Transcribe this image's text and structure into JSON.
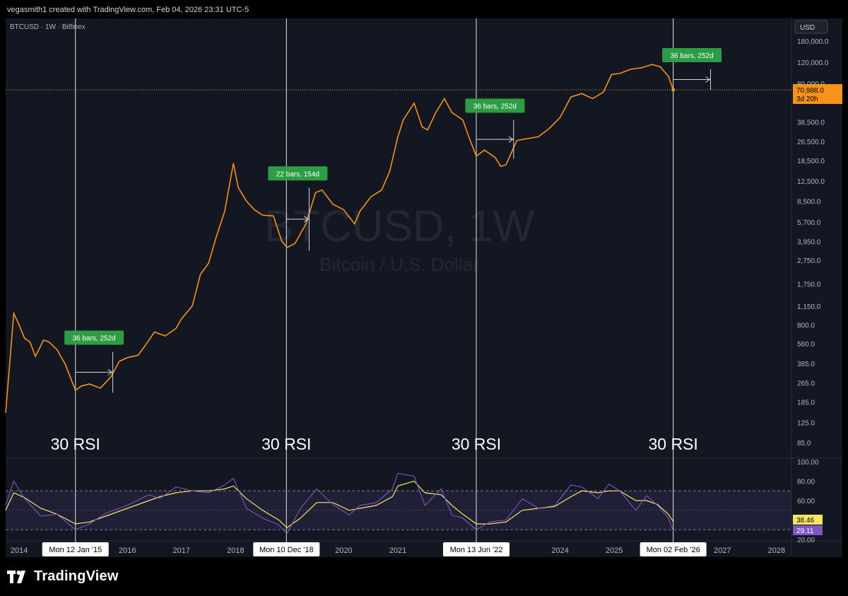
{
  "header": {
    "credit": "vegasmith1 created with TradingView.com, Feb 04, 2026 23:31 UTC-5",
    "symbol_line": "BTCUSD · 1W · Bitfinex",
    "currency": "USD"
  },
  "watermark": {
    "title": "BTCUSD, 1W",
    "subtitle": "Bitcoin / U.S. Dollar"
  },
  "price_badge": {
    "price": "70,988.0",
    "countdown": "3d 20h"
  },
  "rsi_badges": {
    "ma": "38.46",
    "rsi": "29.11"
  },
  "colors": {
    "price_line": "#f7931a",
    "rsi_line": "#7e57c2",
    "rsi_ma": "#f5e663",
    "measure_box": "#2e9c44",
    "background": "#000000"
  },
  "brand": {
    "name": "TradingView",
    "icon": "tradingview-logo-icon"
  },
  "chart_data": [
    {
      "type": "line",
      "name": "price",
      "y_scale": "log",
      "x_axis": {
        "labels": [
          "2014",
          "2016",
          "2017",
          "2018",
          "2020",
          "2021",
          "2024",
          "2025",
          "2027",
          "2028"
        ],
        "range": [
          2013.75,
          2028.25
        ]
      },
      "y_axis": {
        "ticks": [
          180000,
          120000,
          80000,
          38500,
          26500,
          18500,
          12500,
          8500,
          5700,
          3950,
          2750,
          1750,
          1150,
          800,
          560,
          385,
          265,
          185,
          125,
          85
        ],
        "labels": [
          "180,000.0",
          "120,000.0",
          "80,000.0",
          "38,500.0",
          "26,500.0",
          "18,500.0",
          "12,500.0",
          "8,500.0",
          "5,700.0",
          "3,950.0",
          "2,750.0",
          "1,750.0",
          "1,150.0",
          "800.0",
          "560.0",
          "385.0",
          "265.0",
          "185.0",
          "125.0",
          "85.0"
        ]
      },
      "last_price": 70988,
      "x": [
        2013.75,
        2013.9,
        2014.0,
        2014.1,
        2014.2,
        2014.3,
        2014.45,
        2014.55,
        2014.7,
        2014.85,
        2015.04,
        2015.15,
        2015.3,
        2015.5,
        2015.7,
        2015.85,
        2016.0,
        2016.2,
        2016.4,
        2016.5,
        2016.7,
        2016.9,
        2017.0,
        2017.2,
        2017.35,
        2017.5,
        2017.65,
        2017.8,
        2017.96,
        2018.05,
        2018.2,
        2018.35,
        2018.5,
        2018.7,
        2018.85,
        2018.95,
        2019.1,
        2019.3,
        2019.48,
        2019.6,
        2019.8,
        2020.0,
        2020.2,
        2020.3,
        2020.5,
        2020.7,
        2020.85,
        2021.0,
        2021.1,
        2021.3,
        2021.45,
        2021.55,
        2021.7,
        2021.86,
        2022.0,
        2022.2,
        2022.3,
        2022.45,
        2022.6,
        2022.8,
        2022.9,
        2023.0,
        2023.2,
        2023.4,
        2023.6,
        2023.8,
        2024.0,
        2024.2,
        2024.4,
        2024.6,
        2024.8,
        2024.95,
        2025.1,
        2025.3,
        2025.5,
        2025.7,
        2025.85,
        2026.0,
        2026.09
      ],
      "values": [
        150,
        1000,
        800,
        620,
        580,
        440,
        600,
        580,
        500,
        380,
        230,
        250,
        260,
        240,
        300,
        400,
        430,
        450,
        600,
        700,
        650,
        750,
        900,
        1150,
        2100,
        2600,
        4400,
        7000,
        17500,
        11000,
        8500,
        7200,
        6500,
        6400,
        4000,
        3500,
        3800,
        5500,
        10000,
        10500,
        8000,
        7200,
        5500,
        7000,
        9200,
        10500,
        15000,
        29000,
        40000,
        55000,
        35000,
        33000,
        46000,
        60000,
        46000,
        40000,
        30000,
        20000,
        22500,
        19500,
        16500,
        17000,
        27000,
        28000,
        29000,
        34000,
        42000,
        62000,
        66000,
        60000,
        68000,
        95000,
        97000,
        105000,
        108000,
        115000,
        110000,
        92000,
        70988
      ]
    },
    {
      "type": "line",
      "name": "RSI",
      "y_axis": {
        "ticks": [
          100,
          80,
          60,
          20
        ],
        "labels": [
          "100.00",
          "80.00",
          "60.00",
          "20.00"
        ],
        "range": [
          20,
          100
        ]
      },
      "band": [
        30,
        70
      ],
      "x": [
        2013.75,
        2013.9,
        2014.1,
        2014.4,
        2014.7,
        2015.04,
        2015.3,
        2015.6,
        2016.0,
        2016.4,
        2016.6,
        2016.9,
        2017.2,
        2017.5,
        2017.8,
        2017.96,
        2018.2,
        2018.5,
        2018.8,
        2018.95,
        2019.2,
        2019.5,
        2019.8,
        2020.1,
        2020.3,
        2020.6,
        2020.9,
        2021.0,
        2021.3,
        2021.5,
        2021.8,
        2022.0,
        2022.2,
        2022.45,
        2022.7,
        2023.0,
        2023.3,
        2023.6,
        2023.9,
        2024.2,
        2024.4,
        2024.7,
        2024.9,
        2025.1,
        2025.4,
        2025.6,
        2025.8,
        2026.0,
        2026.09
      ],
      "values": [
        55,
        80,
        62,
        44,
        46,
        30,
        36,
        47,
        55,
        66,
        62,
        74,
        70,
        68,
        76,
        83,
        52,
        42,
        35,
        26,
        52,
        72,
        56,
        45,
        55,
        58,
        72,
        88,
        85,
        55,
        72,
        45,
        42,
        30,
        38,
        40,
        62,
        52,
        55,
        76,
        74,
        62,
        77,
        70,
        50,
        65,
        55,
        42,
        29.11
      ],
      "ma_values": [
        50,
        68,
        63,
        52,
        46,
        36,
        38,
        44,
        52,
        60,
        64,
        68,
        70,
        70,
        72,
        75,
        62,
        50,
        40,
        32,
        42,
        58,
        58,
        50,
        52,
        55,
        64,
        75,
        80,
        68,
        66,
        55,
        46,
        36,
        36,
        38,
        50,
        52,
        54,
        64,
        70,
        68,
        70,
        70,
        60,
        60,
        56,
        46,
        38.46
      ]
    }
  ],
  "markers": [
    {
      "x": 2015.04,
      "date": "Mon 12 Jan '15",
      "rsi_label": "30 RSI"
    },
    {
      "x": 2018.94,
      "date": "Mon 10 Dec '18",
      "rsi_label": "30 RSI"
    },
    {
      "x": 2022.45,
      "date": "Mon 13 Jun '22",
      "rsi_label": "30 RSI"
    },
    {
      "x": 2026.09,
      "date": "Mon 02 Feb '26",
      "rsi_label": "30 RSI"
    }
  ],
  "measures": [
    {
      "label": "36 bars, 252d",
      "x0": 2015.04,
      "x1": 2015.73,
      "y_low": 220,
      "y_high": 480
    },
    {
      "label": "22 bars, 154d",
      "x0": 2018.94,
      "x1": 2019.36,
      "y_low": 3300,
      "y_high": 11000
    },
    {
      "label": "36 bars, 252d",
      "x0": 2022.45,
      "x1": 2023.14,
      "y_low": 19000,
      "y_high": 40000
    },
    {
      "label": "36 bars, 252d",
      "x0": 2026.09,
      "x1": 2026.78,
      "y_low": 70988,
      "y_high": 105000
    }
  ]
}
